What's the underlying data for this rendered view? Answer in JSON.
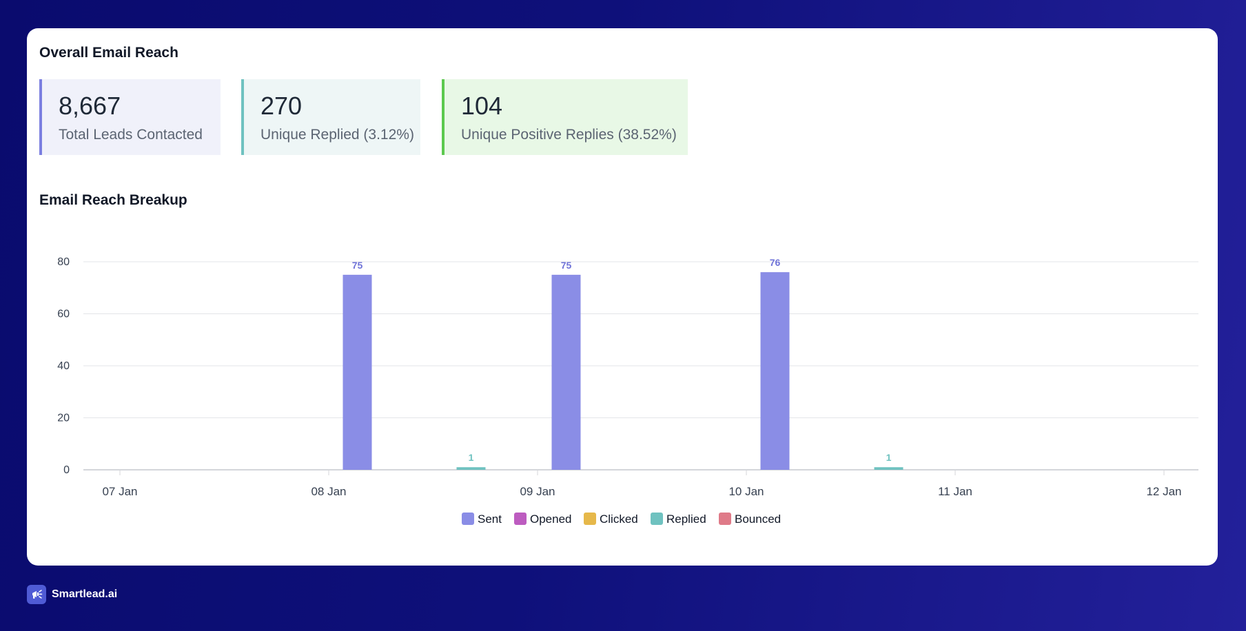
{
  "overall": {
    "title": "Overall Email Reach"
  },
  "stats": [
    {
      "value": "8,667",
      "label": "Total Leads Contacted",
      "accent": "#7b7fe0",
      "bg": "#f0f1fa"
    },
    {
      "value": "270",
      "label": "Unique Replied (3.12%)",
      "accent": "#6fc2c0",
      "bg": "#eef6f6"
    },
    {
      "value": "104",
      "label": "Unique Positive Replies (38.52%)",
      "accent": "#5cc94f",
      "bg": "#e8f8e6"
    }
  ],
  "breakup": {
    "title": "Email Reach Breakup"
  },
  "chart_data": {
    "type": "bar",
    "title": "",
    "xlabel": "",
    "ylabel": "",
    "ylim": [
      0,
      80
    ],
    "yticks": [
      0,
      20,
      40,
      60,
      80
    ],
    "grid": true,
    "legend_position": "bottom",
    "categories": [
      "07 Jan",
      "08 Jan",
      "09 Jan",
      "10 Jan",
      "11 Jan",
      "12 Jan"
    ],
    "series": [
      {
        "name": "Sent",
        "color": "#8a8de6",
        "values": [
          0,
          75,
          75,
          76,
          0,
          0
        ]
      },
      {
        "name": "Opened",
        "color": "#bd5cc0",
        "values": [
          0,
          0,
          0,
          0,
          0,
          0
        ]
      },
      {
        "name": "Clicked",
        "color": "#e6b84a",
        "values": [
          0,
          0,
          0,
          0,
          0,
          0
        ]
      },
      {
        "name": "Replied",
        "color": "#6fc2c0",
        "values": [
          0,
          1,
          0,
          1,
          0,
          0
        ]
      },
      {
        "name": "Bounced",
        "color": "#df7a88",
        "values": [
          0,
          0,
          0,
          0,
          0,
          0
        ]
      }
    ],
    "data_labels": [
      {
        "series": "Sent",
        "category": "08 Jan",
        "text": "75"
      },
      {
        "series": "Sent",
        "category": "09 Jan",
        "text": "75"
      },
      {
        "series": "Sent",
        "category": "10 Jan",
        "text": "76"
      },
      {
        "series": "Replied",
        "category": "08 Jan",
        "text": "1"
      },
      {
        "series": "Replied",
        "category": "10 Jan",
        "text": "1"
      }
    ]
  },
  "brand": {
    "name": "Smartlead.ai",
    "icon": "megaphone-icon"
  }
}
